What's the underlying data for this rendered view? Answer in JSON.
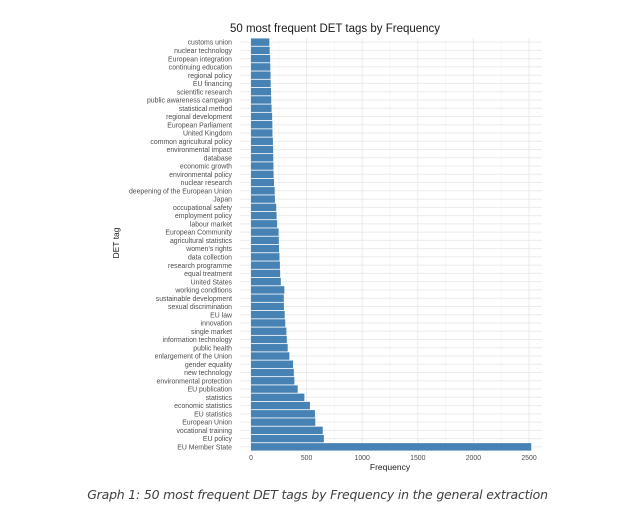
{
  "chart_data": {
    "type": "bar",
    "orientation": "horizontal",
    "title": "50 most frequent DET tags by Frequency",
    "xlabel": "Frequency",
    "ylabel": "DET tag",
    "xlim": [
      0,
      2600
    ],
    "xticks": [
      0,
      500,
      1000,
      1500,
      2000,
      2500
    ],
    "xtick_labels": [
      "0",
      "500",
      "1000",
      "1500",
      "2000",
      "2500"
    ],
    "grid": true,
    "bar_color": "#4682B4",
    "categories": [
      "customs union",
      "nuclear technology",
      "European integration",
      "continuing education",
      "regional policy",
      "EU financing",
      "scientific research",
      "public awareness campaign",
      "statistical method",
      "regional development",
      "European Parliament",
      "United Kingdom",
      "common agricultural policy",
      "environmental impact",
      "database",
      "economic growth",
      "environmental policy",
      "nuclear research",
      "deepening of the European Union",
      "Japan",
      "occupational safety",
      "employment policy",
      "labour market",
      "European Community",
      "agricultural statistics",
      "women's rights",
      "data collection",
      "research programme",
      "equal treatment",
      "United States",
      "working conditions",
      "sustainable development",
      "sexual discrimination",
      "EU law",
      "innovation",
      "single market",
      "information technology",
      "public health",
      "enlargement of the Union",
      "gender equality",
      "new technology",
      "environmental protection",
      "EU publication",
      "statistics",
      "economic statistics",
      "EU statistics",
      "European Union",
      "vocational training",
      "EU policy",
      "EU Member State"
    ],
    "values": [
      165,
      168,
      172,
      173,
      176,
      177,
      180,
      182,
      185,
      190,
      192,
      193,
      197,
      199,
      200,
      202,
      203,
      207,
      213,
      215,
      227,
      230,
      235,
      248,
      250,
      252,
      256,
      260,
      262,
      268,
      300,
      295,
      296,
      303,
      308,
      318,
      322,
      330,
      345,
      378,
      385,
      390,
      420,
      480,
      530,
      575,
      578,
      645,
      655,
      2520
    ]
  },
  "caption": "Graph 1: 50 most frequent DET tags by Frequency in the general extraction"
}
